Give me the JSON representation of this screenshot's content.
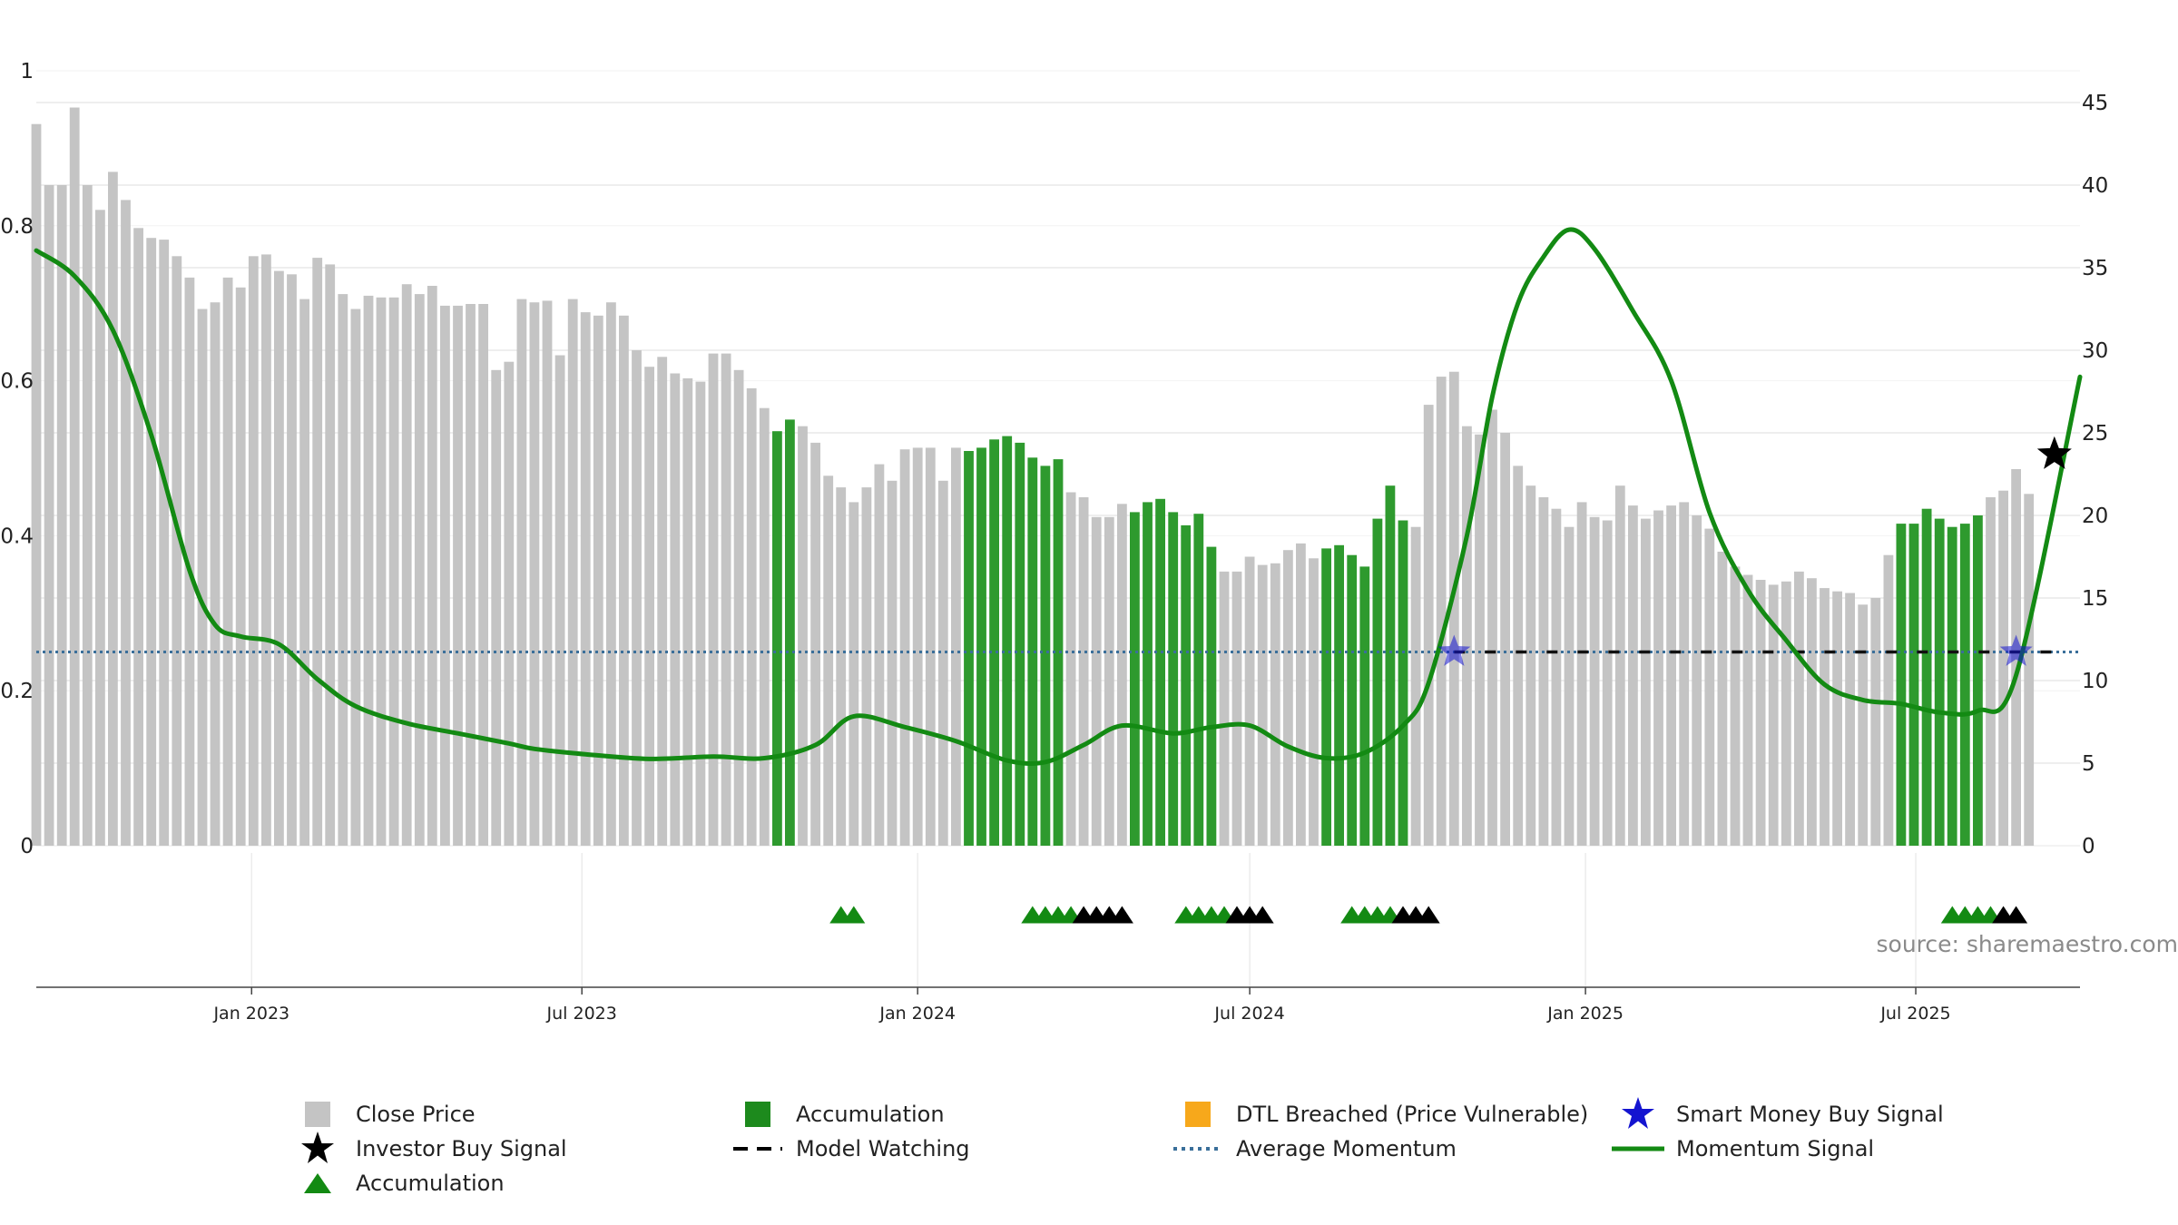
{
  "chart_data": {
    "type": "bar",
    "source": "source: sharemaestro.com",
    "left_axis": {
      "ylim": [
        0,
        1
      ],
      "ticks": [
        0,
        0.2,
        0.4,
        0.6,
        0.8,
        1
      ],
      "tick_labels": [
        "0",
        "0.2",
        "0.4",
        "0.6",
        "0.8",
        "1"
      ]
    },
    "right_axis": {
      "ylim": [
        0,
        45
      ],
      "ticks": [
        0,
        5,
        10,
        15,
        20,
        25,
        30,
        35,
        40,
        45
      ],
      "tick_labels": [
        "0",
        "5",
        "10",
        "15",
        "20",
        "25",
        "30",
        "35",
        "40",
        "45"
      ]
    },
    "x_axis": {
      "range": [
        "2022-09-05",
        "2025-09-29"
      ],
      "ticks": [
        "2023-01-01",
        "2023-07-01",
        "2024-01-01",
        "2024-07-01",
        "2025-01-01",
        "2025-07-01"
      ],
      "tick_labels": [
        "Jan 2023",
        "Jul 2023",
        "Jan 2024",
        "Jul 2024",
        "Jan 2025",
        "Jul 2025"
      ]
    },
    "grid": true,
    "legend_position": "bottom",
    "colors": {
      "close": "#c4c4c4",
      "accumulation": "#2e9a2e",
      "momentum": "#138a13",
      "average": "#3a6f9a",
      "smart_money": "#1414d0",
      "investor": "#000000",
      "dtl": "#f7a81b"
    },
    "close_price": {
      "start": "2022-09-05",
      "interval_days": 7,
      "values": [
        43.7,
        40.0,
        40.0,
        44.7,
        40.0,
        38.5,
        40.8,
        39.1,
        37.4,
        36.8,
        36.7,
        35.7,
        34.4,
        32.5,
        32.9,
        34.4,
        33.8,
        35.7,
        35.8,
        34.8,
        34.6,
        33.1,
        35.6,
        35.2,
        33.4,
        32.5,
        33.3,
        33.2,
        33.2,
        34.0,
        33.4,
        33.9,
        32.7,
        32.7,
        32.8,
        32.8,
        28.8,
        29.3,
        33.1,
        32.9,
        33.0,
        29.7,
        33.1,
        32.3,
        32.1,
        32.9,
        32.1,
        30.0,
        29.0,
        29.6,
        28.6,
        28.3,
        28.1,
        29.8,
        29.8,
        28.8,
        27.7,
        26.5,
        25.1,
        25.8,
        25.4,
        24.4,
        22.4,
        21.7,
        20.8,
        21.7,
        23.1,
        22.1,
        24.0,
        24.1,
        24.1,
        22.1,
        24.1,
        23.9,
        24.1,
        24.6,
        24.8,
        24.4,
        23.5,
        23.0,
        23.4,
        21.4,
        21.1,
        19.9,
        19.9,
        20.7,
        20.2,
        20.8,
        21.0,
        20.2,
        19.4,
        20.1,
        18.1,
        16.6,
        16.6,
        17.5,
        17.0,
        17.1,
        17.9,
        18.3,
        17.4,
        18.0,
        18.2,
        17.6,
        16.9,
        19.8,
        21.8,
        19.7,
        19.3,
        26.7,
        28.4,
        28.7,
        25.4,
        24.9,
        26.4,
        25.0,
        23.0,
        21.8,
        21.1,
        20.4,
        19.3,
        20.8,
        19.9,
        19.7,
        21.8,
        20.6,
        19.8,
        20.3,
        20.6,
        20.8,
        20.0,
        19.2,
        17.8,
        16.9,
        16.4,
        16.1,
        15.8,
        16.0,
        16.6,
        16.2,
        15.6,
        15.4,
        15.3,
        14.6,
        15.0,
        17.6,
        19.5,
        19.5,
        20.4,
        19.8,
        19.3,
        19.5,
        20.0,
        21.1,
        21.5,
        22.8,
        21.3
      ],
      "accumulation_ranges": [
        [
          58,
          59
        ],
        [
          73,
          80
        ],
        [
          86,
          92
        ],
        [
          101,
          107
        ],
        [
          146,
          152
        ]
      ]
    },
    "momentum_signal": {
      "points": [
        [
          "2022-09-05",
          0.768
        ],
        [
          "2022-09-26",
          0.735
        ],
        [
          "2022-10-17",
          0.665
        ],
        [
          "2022-11-07",
          0.53
        ],
        [
          "2022-11-28",
          0.355
        ],
        [
          "2022-12-12",
          0.285
        ],
        [
          "2022-12-26",
          0.27
        ],
        [
          "2023-01-16",
          0.26
        ],
        [
          "2023-02-06",
          0.215
        ],
        [
          "2023-02-27",
          0.18
        ],
        [
          "2023-03-27",
          0.158
        ],
        [
          "2023-04-24",
          0.145
        ],
        [
          "2023-05-22",
          0.132
        ],
        [
          "2023-06-05",
          0.125
        ],
        [
          "2023-07-03",
          0.118
        ],
        [
          "2023-08-07",
          0.112
        ],
        [
          "2023-09-11",
          0.115
        ],
        [
          "2023-10-09",
          0.113
        ],
        [
          "2023-11-06",
          0.13
        ],
        [
          "2023-11-27",
          0.167
        ],
        [
          "2023-12-25",
          0.153
        ],
        [
          "2024-01-22",
          0.135
        ],
        [
          "2024-02-19",
          0.11
        ],
        [
          "2024-03-11",
          0.108
        ],
        [
          "2024-04-01",
          0.13
        ],
        [
          "2024-04-22",
          0.155
        ],
        [
          "2024-05-20",
          0.145
        ],
        [
          "2024-06-10",
          0.153
        ],
        [
          "2024-07-01",
          0.155
        ],
        [
          "2024-07-22",
          0.128
        ],
        [
          "2024-08-12",
          0.113
        ],
        [
          "2024-09-02",
          0.12
        ],
        [
          "2024-09-23",
          0.155
        ],
        [
          "2024-10-07",
          0.21
        ],
        [
          "2024-10-28",
          0.4
        ],
        [
          "2024-11-11",
          0.58
        ],
        [
          "2024-11-25",
          0.7
        ],
        [
          "2024-12-09",
          0.76
        ],
        [
          "2024-12-23",
          0.795
        ],
        [
          "2025-01-06",
          0.77
        ],
        [
          "2025-01-27",
          0.69
        ],
        [
          "2025-02-17",
          0.6
        ],
        [
          "2025-03-10",
          0.43
        ],
        [
          "2025-03-31",
          0.33
        ],
        [
          "2025-04-21",
          0.265
        ],
        [
          "2025-05-12",
          0.208
        ],
        [
          "2025-06-02",
          0.188
        ],
        [
          "2025-06-23",
          0.183
        ],
        [
          "2025-07-14",
          0.172
        ],
        [
          "2025-08-04",
          0.174
        ],
        [
          "2025-08-25",
          0.22
        ],
        [
          "2025-09-29",
          0.605
        ]
      ]
    },
    "average_momentum": 0.25,
    "model_watching": {
      "value": 0.25,
      "start": "2024-10-21",
      "end": "2025-09-15"
    },
    "smart_money_buy_signal": [
      [
        "2024-10-21",
        0.25
      ],
      [
        "2025-08-25",
        0.25
      ]
    ],
    "investor_buy_signal": [
      [
        "2025-09-15",
        0.505
      ]
    ],
    "accumulation_markers": {
      "green": [
        "2023-11-20",
        "2023-11-27",
        "2024-03-04",
        "2024-03-11",
        "2024-03-18",
        "2024-03-25",
        "2024-05-27",
        "2024-06-03",
        "2024-06-10",
        "2024-06-17",
        "2024-08-26",
        "2024-09-02",
        "2024-09-09",
        "2024-09-16",
        "2025-07-21",
        "2025-07-28",
        "2025-08-04",
        "2025-08-11"
      ],
      "black": [
        "2024-04-01",
        "2024-04-08",
        "2024-04-15",
        "2024-04-22",
        "2024-06-24",
        "2024-07-01",
        "2024-07-08",
        "2024-09-23",
        "2024-09-30",
        "2024-10-07",
        "2025-08-18",
        "2025-08-25"
      ]
    },
    "legend": [
      {
        "label": "Close Price",
        "icon": "gray-square"
      },
      {
        "label": "Accumulation",
        "icon": "green-square"
      },
      {
        "label": "DTL Breached (Price Vulnerable)",
        "icon": "orange-square"
      },
      {
        "label": "Smart Money Buy Signal",
        "icon": "blue-star"
      },
      {
        "label": "Investor Buy Signal",
        "icon": "black-star"
      },
      {
        "label": "Model Watching",
        "icon": "black-dash-line"
      },
      {
        "label": "Average Momentum",
        "icon": "blue-dotted-line"
      },
      {
        "label": "Momentum Signal",
        "icon": "green-solid-line"
      },
      {
        "label": "Accumulation",
        "icon": "green-triangle"
      }
    ]
  }
}
